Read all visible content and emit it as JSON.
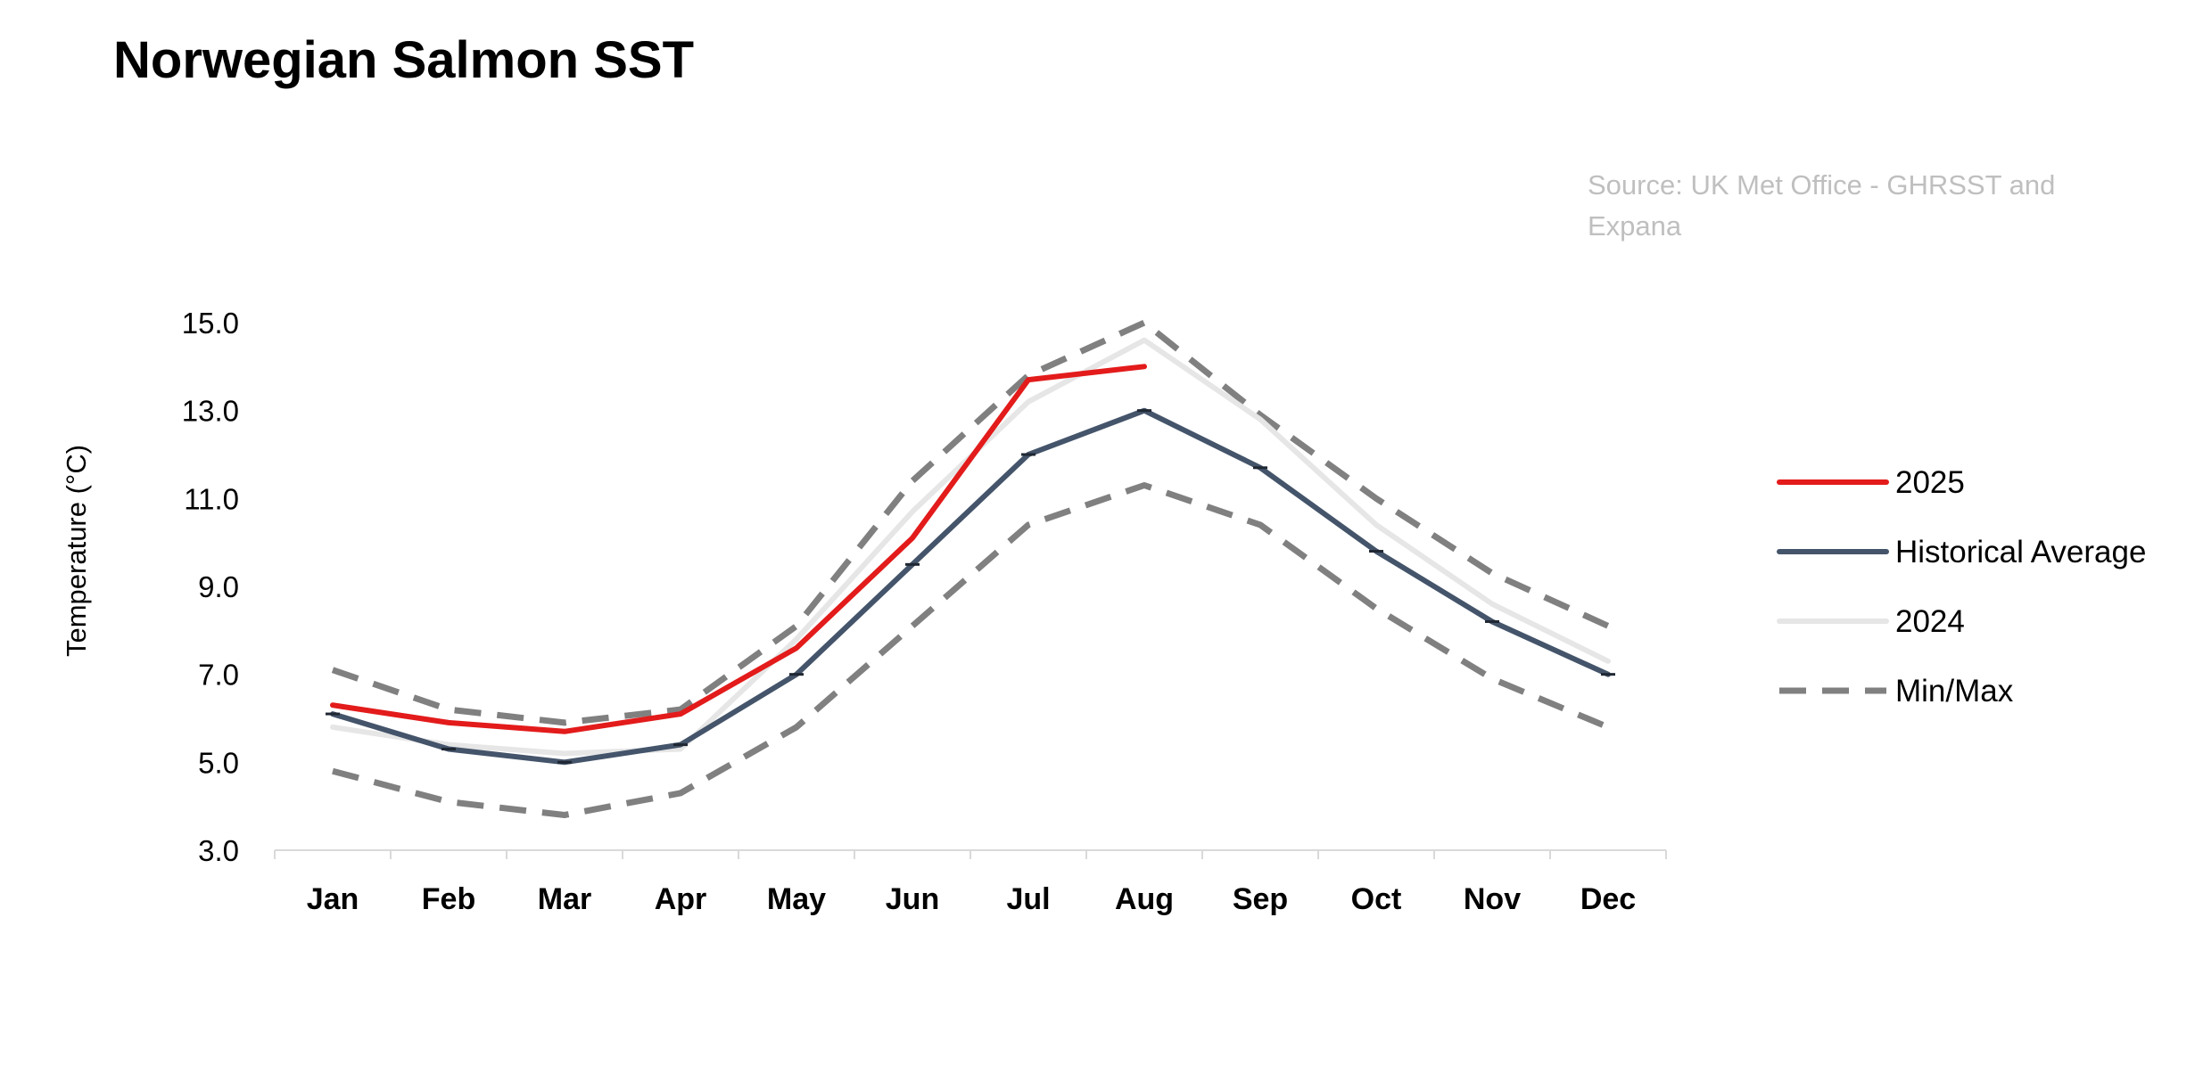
{
  "chart_data": {
    "type": "line",
    "title": "Norwegian Salmon SST",
    "source": "Source: UK Met Office - GHRSST  and Expana",
    "ylabel": "Temperature (°C)",
    "xlabel": "",
    "ylim": [
      3.0,
      15.0
    ],
    "yticks": [
      "15.0",
      "13.0",
      "11.0",
      "9.0",
      "7.0",
      "5.0",
      "3.0"
    ],
    "categories": [
      "Jan",
      "Feb",
      "Mar",
      "Apr",
      "May",
      "Jun",
      "Jul",
      "Aug",
      "Sep",
      "Oct",
      "Nov",
      "Dec"
    ],
    "legend_position": "right",
    "grid": false,
    "series": [
      {
        "name": "2025",
        "color": "#e31b1b",
        "style": "solid",
        "values": [
          6.3,
          5.9,
          5.7,
          6.1,
          7.6,
          10.1,
          13.7,
          14.0,
          null,
          null,
          null,
          null
        ]
      },
      {
        "name": "Historical Average",
        "color": "#44546a",
        "style": "solid",
        "values": [
          6.1,
          5.3,
          5.0,
          5.4,
          7.0,
          9.5,
          12.0,
          13.0,
          11.7,
          9.8,
          8.2,
          7.0
        ]
      },
      {
        "name": "2024",
        "color": "#e6e6e6",
        "style": "solid",
        "values": [
          5.8,
          5.4,
          5.2,
          5.3,
          7.8,
          10.7,
          13.2,
          14.6,
          12.8,
          10.4,
          8.6,
          7.3
        ]
      },
      {
        "name": "Min/Max",
        "color": "#808080",
        "style": "dashed",
        "values": [
          7.1,
          6.2,
          5.9,
          6.2,
          8.1,
          11.4,
          13.8,
          15.0,
          12.9,
          11.0,
          9.3,
          8.1
        ]
      },
      {
        "name": "",
        "color": "#808080",
        "style": "dashed",
        "values": [
          4.8,
          4.1,
          3.8,
          4.3,
          5.8,
          8.1,
          10.4,
          11.3,
          10.4,
          8.5,
          6.9,
          5.8
        ]
      }
    ]
  }
}
